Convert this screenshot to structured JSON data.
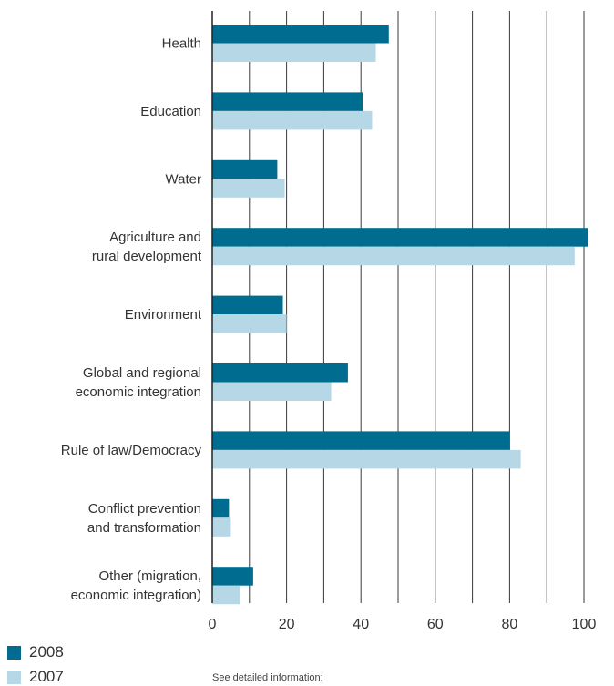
{
  "chart_data": {
    "type": "bar",
    "orientation": "horizontal",
    "categories": [
      [
        "Health"
      ],
      [
        "Education"
      ],
      [
        "Water"
      ],
      [
        "Agriculture and",
        "rural development"
      ],
      [
        "Environment"
      ],
      [
        "Global and regional",
        "economic integration"
      ],
      [
        "Rule of law/Democracy"
      ],
      [
        "Conflict prevention",
        "and transformation"
      ],
      [
        "Other (migration,",
        "economic integration)"
      ]
    ],
    "series": [
      {
        "name": "2008",
        "color": "#006c8f",
        "values": [
          47.5,
          40.5,
          17.5,
          101,
          19,
          36.5,
          80,
          4.5,
          11
        ]
      },
      {
        "name": "2007",
        "color": "#b5d7e6",
        "values": [
          44,
          43,
          19.5,
          97.5,
          20,
          32,
          83,
          5,
          7.5
        ]
      }
    ],
    "xlim": [
      0,
      100
    ],
    "xticks": [
      "0",
      "20",
      "40",
      "60",
      "80",
      "100"
    ],
    "grid_step": 10,
    "grid": true,
    "legend_placement": "bottom-left",
    "title": "",
    "xlabel": "",
    "ylabel": ""
  },
  "legend": {
    "label_2008": "2008",
    "label_2007": "2007"
  },
  "footnote": "See detailed information:"
}
